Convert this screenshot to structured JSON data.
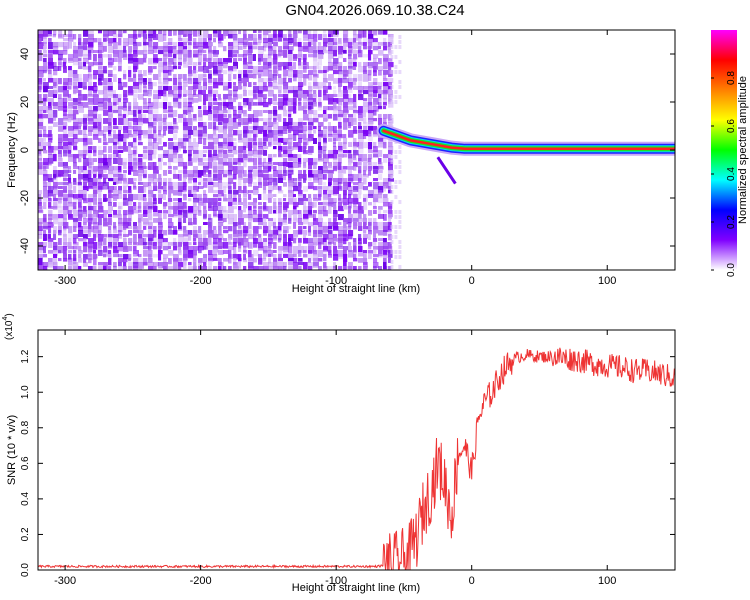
{
  "title": "GN04.2026.069.10.38.C24",
  "chart_data": [
    {
      "type": "heatmap",
      "xlabel": "Height of straight line (km)",
      "ylabel": "Frequency (Hz)",
      "xlim": [
        -320,
        150
      ],
      "ylim": [
        -50,
        50
      ],
      "x_ticks": [
        -300,
        -200,
        -100,
        0,
        100
      ],
      "y_ticks": [
        -40,
        -20,
        0,
        20,
        40
      ],
      "noise_region_x": [
        -320,
        -60
      ],
      "signal_track": {
        "x": [
          -65,
          -55,
          -45,
          -35,
          -25,
          -15,
          -5,
          0,
          20,
          60,
          100,
          150
        ],
        "y": [
          8,
          6,
          4,
          3,
          2,
          1,
          0.5,
          0.5,
          0.5,
          0.5,
          0.5,
          0.5
        ]
      },
      "colorbar": {
        "label": "Normalized spectral amplitude",
        "range": [
          0,
          1
        ],
        "ticks": [
          0.0,
          0.2,
          0.4,
          0.6,
          0.8
        ],
        "colors": [
          "#ffffff",
          "#8000ff",
          "#0000ff",
          "#00ffff",
          "#00ff00",
          "#ffff00",
          "#ff8000",
          "#ff0000",
          "#ff00ff"
        ]
      }
    },
    {
      "type": "line",
      "xlabel": "Height of straight line (km)",
      "ylabel": "SNR (10 * v/v)",
      "scale_label": "(x10",
      "scale_exponent": "4",
      "xlim": [
        -320,
        150
      ],
      "ylim": [
        0,
        1.35
      ],
      "x_ticks": [
        -300,
        -200,
        -100,
        0,
        100
      ],
      "y_ticks": [
        0.0,
        0.2,
        0.4,
        0.6,
        0.8,
        1.0,
        1.2
      ],
      "color": "#ee3333",
      "series": [
        {
          "x": [
            -320,
            -300,
            -250,
            -200,
            -150,
            -100,
            -70,
            -60,
            -50,
            -45,
            -40,
            -35,
            -30,
            -25,
            -20,
            -15,
            -10,
            -5,
            0,
            5,
            10,
            15,
            20,
            25,
            30,
            35,
            40,
            50,
            60,
            70,
            80,
            90,
            100,
            110,
            120,
            130,
            140,
            150
          ],
          "values": [
            0.02,
            0.02,
            0.02,
            0.02,
            0.02,
            0.02,
            0.02,
            0.03,
            0.06,
            0.1,
            0.2,
            0.35,
            0.45,
            0.6,
            0.5,
            0.3,
            0.65,
            0.7,
            0.55,
            0.85,
            0.95,
            1.0,
            1.08,
            1.14,
            1.18,
            1.2,
            1.21,
            1.2,
            1.2,
            1.19,
            1.18,
            1.16,
            1.15,
            1.14,
            1.12,
            1.12,
            1.1,
            1.08
          ]
        }
      ]
    }
  ]
}
